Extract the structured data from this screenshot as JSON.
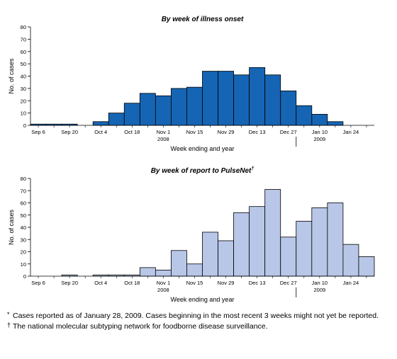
{
  "chart_data": [
    {
      "type": "bar",
      "title": "By week of illness onset",
      "title_sup": "",
      "ylabel": "No. of cases",
      "xlabel": "Week ending and year",
      "ylim": [
        0,
        80
      ],
      "yticks": [
        0,
        10,
        20,
        30,
        40,
        50,
        60,
        70,
        80
      ],
      "categories": [
        "Sep 6",
        "Sep 13",
        "Sep 20",
        "Sep 27",
        "Oct 4",
        "Oct 11",
        "Oct 18",
        "Oct 25",
        "Nov 1",
        "Nov 8",
        "Nov 15",
        "Nov 22",
        "Nov 29",
        "Dec 6",
        "Dec 13",
        "Dec 20",
        "Dec 27",
        "Jan 3",
        "Jan 10",
        "Jan 17",
        "Jan 24",
        "Jan 31"
      ],
      "tick_labels": [
        "Sep 6",
        "",
        "Sep 20",
        "",
        "Oct 4",
        "",
        "Oct 18",
        "",
        "Nov 1",
        "",
        "Nov 15",
        "",
        "Nov 29",
        "",
        "Dec 13",
        "",
        "Dec 27",
        "",
        "Jan 10",
        "",
        "Jan 24",
        ""
      ],
      "values": [
        1,
        1,
        1,
        0,
        3,
        10,
        18,
        26,
        24,
        30,
        31,
        44,
        44,
        41,
        47,
        41,
        28,
        16,
        9,
        3,
        0,
        0
      ],
      "year_labels": [
        {
          "text": "2008",
          "at_index": 8
        },
        {
          "text": "2009",
          "at_index": 18
        }
      ],
      "year_divider_after_index": 16,
      "bar_color": "#1565b4",
      "grid": false
    },
    {
      "type": "bar",
      "title": "By week of report to PulseNet",
      "title_sup": "†",
      "ylabel": "No. of cases",
      "xlabel": "Week ending and year",
      "ylim": [
        0,
        80
      ],
      "yticks": [
        0,
        10,
        20,
        30,
        40,
        50,
        60,
        70,
        80
      ],
      "categories": [
        "Sep 6",
        "Sep 13",
        "Sep 20",
        "Sep 27",
        "Oct 4",
        "Oct 11",
        "Oct 18",
        "Oct 25",
        "Nov 1",
        "Nov 8",
        "Nov 15",
        "Nov 22",
        "Nov 29",
        "Dec 6",
        "Dec 13",
        "Dec 20",
        "Dec 27",
        "Jan 3",
        "Jan 10",
        "Jan 17",
        "Jan 24",
        "Jan 31"
      ],
      "tick_labels": [
        "Sep 6",
        "",
        "Sep 20",
        "",
        "Oct 4",
        "",
        "Oct 18",
        "",
        "Nov 1",
        "",
        "Nov 15",
        "",
        "Nov 29",
        "",
        "Dec 13",
        "",
        "Dec 27",
        "",
        "Jan 10",
        "",
        "Jan 24",
        ""
      ],
      "values": [
        0,
        0,
        1,
        0,
        1,
        1,
        1,
        7,
        5,
        21,
        10,
        36,
        29,
        52,
        57,
        71,
        32,
        45,
        56,
        60,
        26,
        16
      ],
      "year_labels": [
        {
          "text": "2008",
          "at_index": 8
        },
        {
          "text": "2009",
          "at_index": 18
        }
      ],
      "year_divider_after_index": 16,
      "bar_color": "#b8c6e8",
      "grid": false
    }
  ],
  "footnotes": [
    {
      "mark": "*",
      "text": "Cases reported as of January 28, 2009. Cases beginning in the most recent 3 weeks might not yet be reported."
    },
    {
      "mark": "†",
      "text": "The national molecular subtyping network for foodborne disease surveillance."
    }
  ]
}
